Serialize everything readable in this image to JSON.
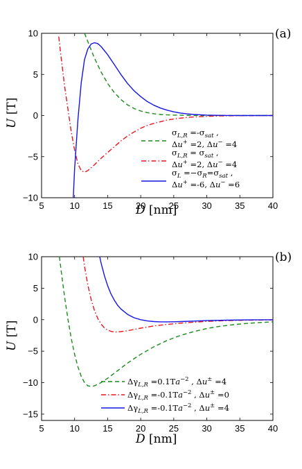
{
  "chart_data": [
    {
      "type": "line",
      "panel_label": "(a)",
      "xlabel": "D [nm]",
      "ylabel": "U [T]",
      "xlim": [
        5,
        40
      ],
      "ylim": [
        -10,
        10
      ],
      "xticks": [
        "5",
        "10",
        "15",
        "20",
        "25",
        "30",
        "35",
        "40"
      ],
      "yticks": [
        "10",
        "5",
        "0",
        "−5",
        "−10"
      ],
      "grid": false,
      "legend_position": "lower-right",
      "series": [
        {
          "legend_line1": "σL,R =-σsat ,",
          "legend_line2": "Δu+ =2, Δu− =4",
          "color": "#1a8a1a",
          "style": "dashed",
          "x": [
            11.5,
            12,
            13,
            14,
            15,
            16,
            17,
            18,
            19,
            20,
            21,
            22,
            23,
            24,
            25,
            26,
            28,
            30,
            33,
            36,
            40
          ],
          "y": [
            10,
            9.0,
            7.0,
            5.3,
            3.9,
            2.8,
            1.95,
            1.3,
            0.85,
            0.55,
            0.35,
            0.22,
            0.13,
            0.08,
            0.05,
            0.03,
            0.01,
            0,
            0,
            0,
            0
          ]
        },
        {
          "legend_line1": "σL,R = σsat ,",
          "legend_line2": "Δu+ =2, Δu− =4",
          "color": "#e8141b",
          "style": "dashdot",
          "x": [
            7.6,
            8,
            8.5,
            9,
            9.5,
            10,
            10.5,
            11,
            11.5,
            12,
            13,
            14,
            15,
            16,
            17,
            18,
            19,
            20,
            21,
            22,
            23,
            24,
            25,
            26,
            27,
            28,
            30,
            32,
            35,
            40
          ],
          "y": [
            9.6,
            6.8,
            3.5,
            0.7,
            -2.0,
            -4.2,
            -5.9,
            -6.7,
            -6.9,
            -6.7,
            -6.0,
            -5.2,
            -4.5,
            -3.8,
            -3.1,
            -2.5,
            -2.0,
            -1.55,
            -1.2,
            -0.95,
            -0.75,
            -0.55,
            -0.42,
            -0.32,
            -0.24,
            -0.18,
            -0.1,
            -0.05,
            -0.02,
            0
          ]
        },
        {
          "legend_line1": "σL =−σR=σsat ,",
          "legend_line2": "Δu+ =-6, Δu− =6",
          "color": "#1414e6",
          "style": "solid",
          "x": [
            9.8,
            10,
            10.5,
            11,
            11.5,
            12,
            12.5,
            13,
            13.5,
            14,
            15,
            16,
            17,
            18,
            19,
            20,
            21,
            22,
            23,
            24,
            25,
            26,
            27,
            28,
            30,
            33,
            36,
            40
          ],
          "y": [
            -10,
            -6.5,
            -0.5,
            4.0,
            6.8,
            8.1,
            8.7,
            8.85,
            8.75,
            8.4,
            7.4,
            6.2,
            5.0,
            3.9,
            3.0,
            2.3,
            1.7,
            1.25,
            0.9,
            0.65,
            0.45,
            0.3,
            0.2,
            0.13,
            0.05,
            0.01,
            0,
            0
          ]
        }
      ]
    },
    {
      "type": "line",
      "panel_label": "(b)",
      "xlabel": "D [nm]",
      "ylabel": "U [T]",
      "xlim": [
        5,
        40
      ],
      "ylim": [
        -16,
        10
      ],
      "xticks": [
        "5",
        "10",
        "15",
        "20",
        "25",
        "30",
        "35",
        "40"
      ],
      "yticks": [
        "10",
        "5",
        "0",
        "−5",
        "−10",
        "−15"
      ],
      "grid": false,
      "legend_position": "lower-right",
      "series": [
        {
          "legend_text": "ΔγL,R =0.1Ta−2 , Δu± =4",
          "color": "#1a8a1a",
          "style": "dashed",
          "x": [
            7.7,
            8,
            8.5,
            9,
            9.5,
            10,
            10.5,
            11,
            11.5,
            12,
            12.5,
            13,
            14,
            15,
            16,
            17,
            18,
            19,
            20,
            22,
            24,
            26,
            28,
            30,
            32,
            34,
            36,
            38,
            40
          ],
          "y": [
            10,
            7.5,
            3.5,
            0,
            -3.0,
            -5.5,
            -7.5,
            -9.0,
            -10.0,
            -10.5,
            -10.6,
            -10.5,
            -10.0,
            -9.3,
            -8.5,
            -7.7,
            -6.9,
            -6.2,
            -5.5,
            -4.3,
            -3.3,
            -2.5,
            -1.9,
            -1.4,
            -1.05,
            -0.8,
            -0.6,
            -0.45,
            -0.35
          ]
        },
        {
          "legend_text": "ΔγL,R =-0.1Ta−2 , Δu± =0",
          "color": "#e8141b",
          "style": "dashdot",
          "x": [
            11.3,
            11.5,
            12,
            12.5,
            13,
            13.5,
            14,
            14.5,
            15,
            15.5,
            16,
            16.5,
            17,
            18,
            19,
            20,
            22,
            24,
            26,
            28,
            30,
            33,
            36,
            40
          ],
          "y": [
            10,
            8.5,
            5.5,
            3.2,
            1.5,
            0.2,
            -0.7,
            -1.3,
            -1.65,
            -1.85,
            -1.95,
            -1.95,
            -1.9,
            -1.75,
            -1.55,
            -1.35,
            -1.0,
            -0.75,
            -0.55,
            -0.4,
            -0.28,
            -0.15,
            -0.08,
            -0.03
          ]
        },
        {
          "legend_text": "ΔγL,R =-0.1Ta−2 , Δu± =4",
          "color": "#1414e6",
          "style": "solid",
          "x": [
            13.8,
            14,
            14.5,
            15,
            15.5,
            16,
            16.5,
            17,
            18,
            19,
            20,
            21,
            22,
            23,
            24,
            25,
            26,
            28,
            30,
            33,
            36,
            40
          ],
          "y": [
            10,
            9.0,
            7.0,
            5.4,
            4.1,
            3.1,
            2.3,
            1.7,
            0.85,
            0.3,
            0,
            -0.2,
            -0.3,
            -0.35,
            -0.35,
            -0.33,
            -0.3,
            -0.22,
            -0.15,
            -0.08,
            -0.04,
            -0.01
          ]
        }
      ]
    }
  ]
}
